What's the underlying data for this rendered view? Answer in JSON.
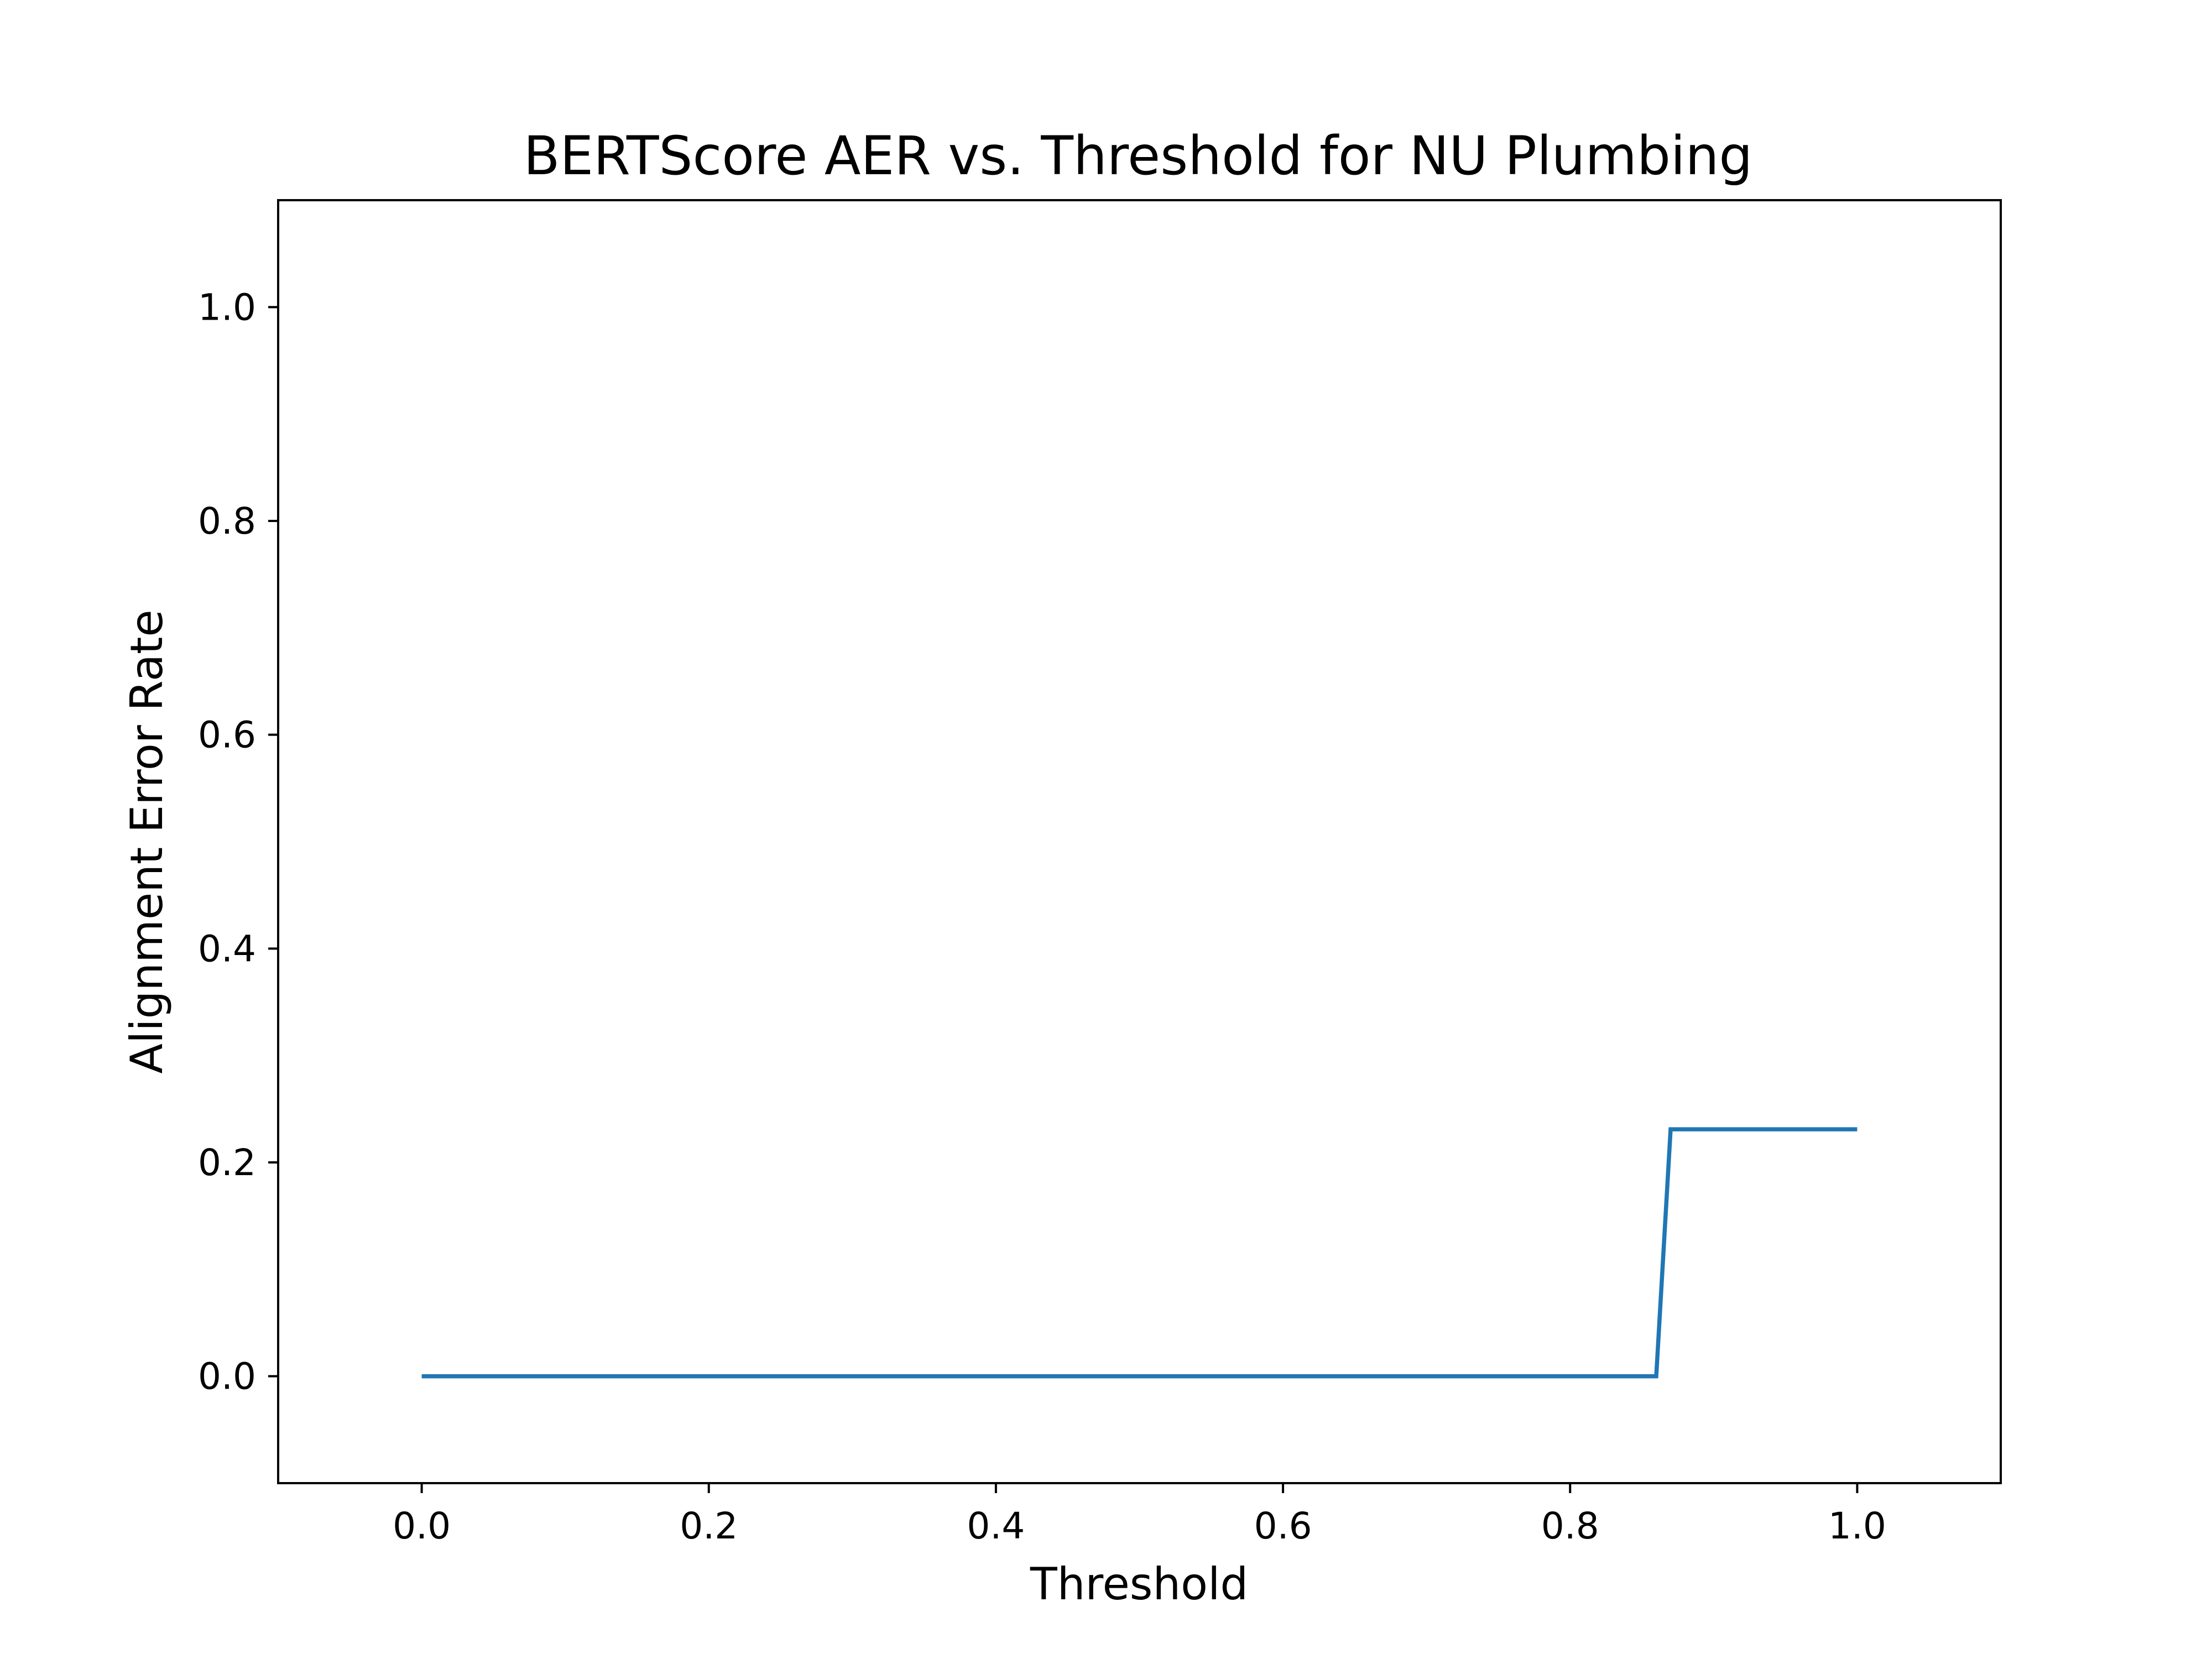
{
  "chart_data": {
    "type": "line",
    "title": "BERTScore AER vs. Threshold for NU Plumbing",
    "xlabel": "Threshold",
    "ylabel": "Alignment Error Rate",
    "xlim": [
      -0.1,
      1.1
    ],
    "ylim": [
      -0.1,
      1.1
    ],
    "xticks": [
      0.0,
      0.2,
      0.4,
      0.6,
      0.8,
      1.0
    ],
    "xtick_labels": [
      "0.0",
      "0.2",
      "0.4",
      "0.6",
      "0.8",
      "1.0"
    ],
    "yticks": [
      0.0,
      0.2,
      0.4,
      0.6,
      0.8,
      1.0
    ],
    "ytick_labels": [
      "0.0",
      "0.2",
      "0.4",
      "0.6",
      "0.8",
      "1.0"
    ],
    "grid": false,
    "series": [
      {
        "color": "#1f77b4",
        "x": [
          0.0,
          0.1,
          0.2,
          0.3,
          0.4,
          0.5,
          0.6,
          0.7,
          0.8,
          0.86,
          0.87,
          0.9,
          1.0
        ],
        "y": [
          0.0,
          0.0,
          0.0,
          0.0,
          0.0,
          0.0,
          0.0,
          0.0,
          0.0,
          0.0,
          0.231,
          0.231,
          0.231
        ]
      }
    ]
  }
}
